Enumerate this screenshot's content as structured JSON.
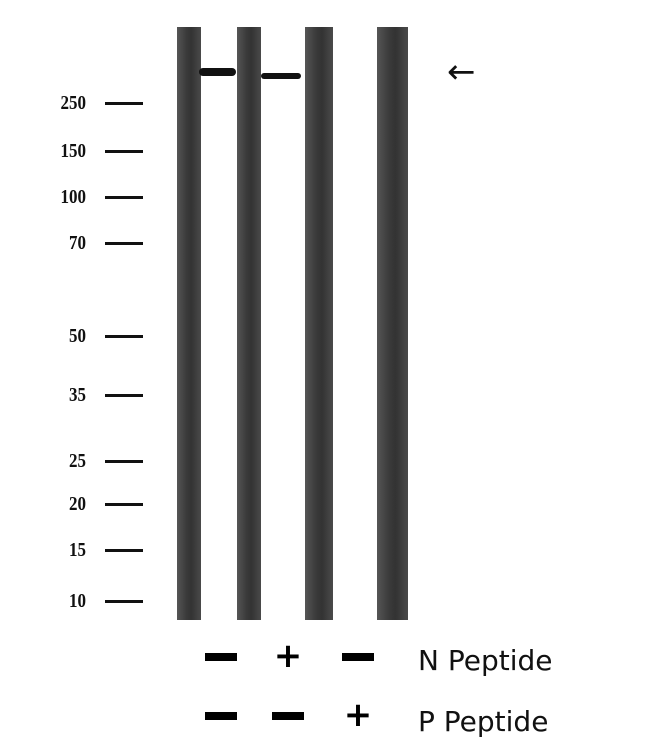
{
  "markers": [
    "250",
    "150",
    "100",
    "70",
    "50",
    "35",
    "25",
    "20",
    "15",
    "10"
  ],
  "treatments": [
    {
      "label": "N Peptide",
      "values": [
        "-",
        "+",
        "-"
      ]
    },
    {
      "label": "P Peptide",
      "values": [
        "-",
        "-",
        "+"
      ]
    }
  ],
  "arrow_icon": "left-arrow-icon"
}
